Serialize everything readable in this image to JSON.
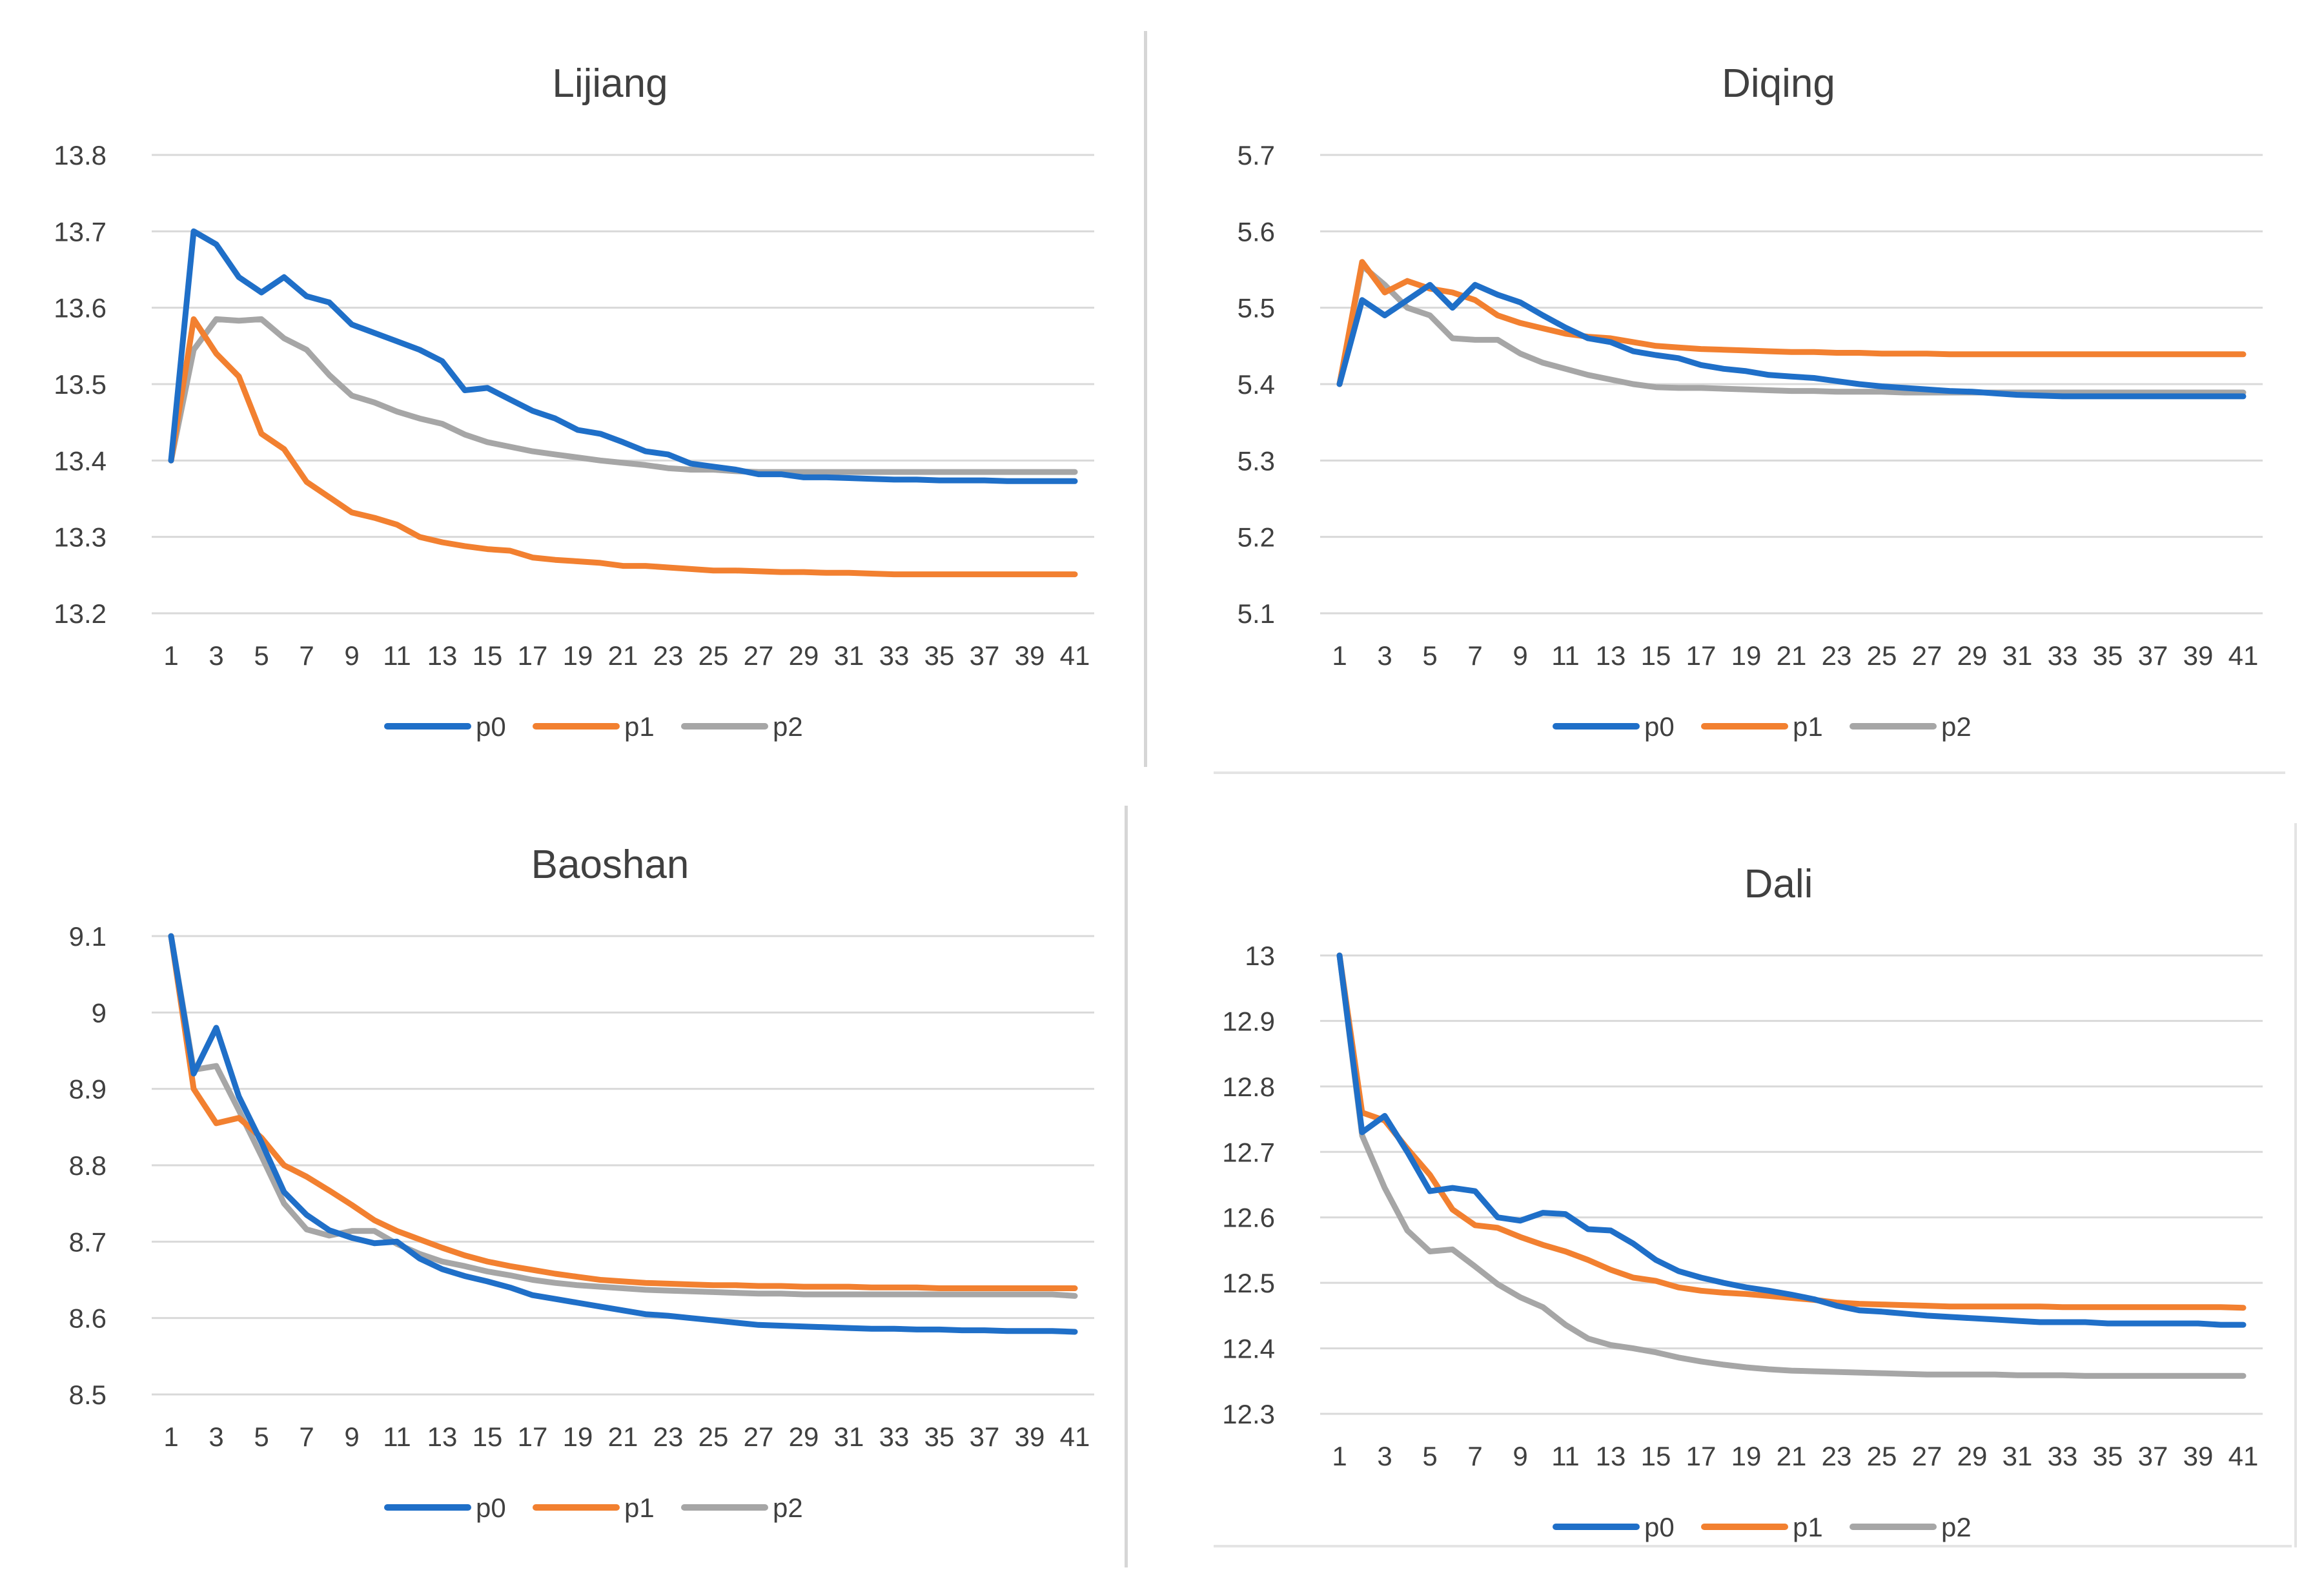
{
  "colors": {
    "p0": "#1f6fc8",
    "p1": "#f28030",
    "p2": "#a6a6a6",
    "grid": "#d9d9d9",
    "text": "#404040"
  },
  "chart_data": [
    {
      "type": "line",
      "title": "Lijiang",
      "xlabel": "",
      "ylabel": "",
      "x_tick_labels": [
        "1",
        "3",
        "5",
        "7",
        "9",
        "11",
        "13",
        "15",
        "17",
        "19",
        "21",
        "23",
        "25",
        "27",
        "29",
        "31",
        "33",
        "35",
        "37",
        "39",
        "41"
      ],
      "y_tick_labels": [
        "13.2",
        "13.3",
        "13.4",
        "13.5",
        "13.6",
        "13.7",
        "13.8"
      ],
      "ylim": [
        13.2,
        13.8
      ],
      "grid": true,
      "legend": "bottom",
      "series": [
        {
          "name": "p0",
          "values": [
            13.4,
            13.7,
            13.683,
            13.64,
            13.62,
            13.64,
            13.615,
            13.607,
            13.578,
            13.567,
            13.556,
            13.545,
            13.53,
            13.492,
            13.495,
            13.48,
            13.465,
            13.455,
            13.44,
            13.435,
            13.424,
            13.412,
            13.408,
            13.396,
            13.392,
            13.388,
            13.382,
            13.382,
            13.378,
            13.378,
            13.377,
            13.376,
            13.375,
            13.375,
            13.374,
            13.374,
            13.374,
            13.373,
            13.373,
            13.373,
            13.373
          ]
        },
        {
          "name": "p1",
          "values": [
            13.4,
            13.585,
            13.54,
            13.51,
            13.435,
            13.415,
            13.372,
            13.352,
            13.332,
            13.325,
            13.316,
            13.3,
            13.293,
            13.288,
            13.284,
            13.282,
            13.273,
            13.27,
            13.268,
            13.266,
            13.262,
            13.262,
            13.26,
            13.258,
            13.256,
            13.256,
            13.255,
            13.254,
            13.254,
            13.253,
            13.253,
            13.252,
            13.251,
            13.251,
            13.251,
            13.251,
            13.251,
            13.251,
            13.251,
            13.251,
            13.251
          ]
        },
        {
          "name": "p2",
          "values": [
            13.4,
            13.545,
            13.585,
            13.583,
            13.585,
            13.56,
            13.545,
            13.512,
            13.485,
            13.476,
            13.464,
            13.455,
            13.448,
            13.434,
            13.424,
            13.418,
            13.412,
            13.408,
            13.404,
            13.4,
            13.397,
            13.394,
            13.39,
            13.388,
            13.388,
            13.386,
            13.385,
            13.385,
            13.385,
            13.385,
            13.385,
            13.385,
            13.385,
            13.385,
            13.385,
            13.385,
            13.385,
            13.385,
            13.385,
            13.385,
            13.385
          ]
        }
      ]
    },
    {
      "type": "line",
      "title": "Diqing",
      "xlabel": "",
      "ylabel": "",
      "x_tick_labels": [
        "1",
        "3",
        "5",
        "7",
        "9",
        "11",
        "13",
        "15",
        "17",
        "19",
        "21",
        "23",
        "25",
        "27",
        "29",
        "31",
        "33",
        "35",
        "37",
        "39",
        "41"
      ],
      "y_tick_labels": [
        "5.1",
        "5.2",
        "5.3",
        "5.4",
        "5.5",
        "5.6",
        "5.7"
      ],
      "ylim": [
        5.1,
        5.7
      ],
      "grid": true,
      "legend": "bottom",
      "series": [
        {
          "name": "p0",
          "values": [
            5.4,
            5.51,
            5.49,
            5.51,
            5.53,
            5.5,
            5.53,
            5.517,
            5.507,
            5.49,
            5.474,
            5.46,
            5.455,
            5.443,
            5.438,
            5.434,
            5.425,
            5.42,
            5.417,
            5.412,
            5.41,
            5.408,
            5.404,
            5.4,
            5.397,
            5.395,
            5.393,
            5.391,
            5.39,
            5.388,
            5.386,
            5.385,
            5.384,
            5.384,
            5.384,
            5.384,
            5.384,
            5.384,
            5.384,
            5.384,
            5.384
          ]
        },
        {
          "name": "p1",
          "values": [
            5.4,
            5.56,
            5.52,
            5.535,
            5.525,
            5.52,
            5.51,
            5.49,
            5.48,
            5.473,
            5.466,
            5.462,
            5.46,
            5.455,
            5.45,
            5.448,
            5.446,
            5.445,
            5.444,
            5.443,
            5.442,
            5.442,
            5.441,
            5.441,
            5.44,
            5.44,
            5.44,
            5.439,
            5.439,
            5.439,
            5.439,
            5.439,
            5.439,
            5.439,
            5.439,
            5.439,
            5.439,
            5.439,
            5.439,
            5.439,
            5.439
          ]
        },
        {
          "name": "p2",
          "values": [
            5.4,
            5.555,
            5.53,
            5.5,
            5.49,
            5.46,
            5.458,
            5.458,
            5.44,
            5.428,
            5.42,
            5.412,
            5.406,
            5.4,
            5.396,
            5.395,
            5.395,
            5.394,
            5.393,
            5.392,
            5.391,
            5.391,
            5.39,
            5.39,
            5.39,
            5.389,
            5.389,
            5.389,
            5.389,
            5.389,
            5.389,
            5.389,
            5.389,
            5.389,
            5.389,
            5.389,
            5.389,
            5.389,
            5.389,
            5.389,
            5.389
          ]
        }
      ]
    },
    {
      "type": "line",
      "title": "Baoshan",
      "xlabel": "",
      "ylabel": "",
      "x_tick_labels": [
        "1",
        "3",
        "5",
        "7",
        "9",
        "11",
        "13",
        "15",
        "17",
        "19",
        "21",
        "23",
        "25",
        "27",
        "29",
        "31",
        "33",
        "35",
        "37",
        "39",
        "41"
      ],
      "y_tick_labels": [
        "8.5",
        "8.6",
        "8.7",
        "8.8",
        "8.9",
        "9",
        "9.1"
      ],
      "ylim": [
        8.5,
        9.1
      ],
      "grid": true,
      "legend": "bottom",
      "series": [
        {
          "name": "p0",
          "values": [
            9.1,
            8.92,
            8.98,
            8.89,
            8.83,
            8.765,
            8.735,
            8.715,
            8.705,
            8.698,
            8.7,
            8.678,
            8.664,
            8.655,
            8.648,
            8.64,
            8.63,
            8.625,
            8.62,
            8.615,
            8.61,
            8.605,
            8.603,
            8.6,
            8.597,
            8.594,
            8.591,
            8.59,
            8.589,
            8.588,
            8.587,
            8.586,
            8.586,
            8.585,
            8.585,
            8.584,
            8.584,
            8.583,
            8.583,
            8.583,
            8.582
          ]
        },
        {
          "name": "p1",
          "values": [
            9.1,
            8.9,
            8.855,
            8.862,
            8.836,
            8.8,
            8.785,
            8.767,
            8.748,
            8.728,
            8.714,
            8.703,
            8.692,
            8.682,
            8.674,
            8.668,
            8.663,
            8.658,
            8.654,
            8.65,
            8.648,
            8.646,
            8.645,
            8.644,
            8.643,
            8.643,
            8.642,
            8.642,
            8.641,
            8.641,
            8.641,
            8.64,
            8.64,
            8.64,
            8.639,
            8.639,
            8.639,
            8.639,
            8.639,
            8.639,
            8.639
          ]
        },
        {
          "name": "p2",
          "values": [
            9.1,
            8.925,
            8.93,
            8.872,
            8.812,
            8.75,
            8.716,
            8.708,
            8.714,
            8.714,
            8.697,
            8.684,
            8.674,
            8.668,
            8.661,
            8.656,
            8.65,
            8.646,
            8.643,
            8.641,
            8.639,
            8.637,
            8.636,
            8.635,
            8.634,
            8.633,
            8.632,
            8.632,
            8.631,
            8.631,
            8.631,
            8.631,
            8.631,
            8.631,
            8.631,
            8.631,
            8.631,
            8.631,
            8.631,
            8.631,
            8.629
          ]
        }
      ]
    },
    {
      "type": "line",
      "title": "Dali",
      "xlabel": "",
      "ylabel": "",
      "x_tick_labels": [
        "1",
        "3",
        "5",
        "7",
        "9",
        "11",
        "13",
        "15",
        "17",
        "19",
        "21",
        "23",
        "25",
        "27",
        "29",
        "31",
        "33",
        "35",
        "37",
        "39",
        "41"
      ],
      "y_tick_labels": [
        "12.3",
        "12.4",
        "12.5",
        "12.6",
        "12.7",
        "12.8",
        "12.9",
        "13"
      ],
      "ylim": [
        12.3,
        13.0
      ],
      "grid": true,
      "legend": "bottom",
      "series": [
        {
          "name": "p0",
          "values": [
            13.0,
            12.73,
            12.755,
            12.7,
            12.64,
            12.645,
            12.64,
            12.6,
            12.595,
            12.607,
            12.605,
            12.582,
            12.58,
            12.56,
            12.535,
            12.518,
            12.508,
            12.5,
            12.493,
            12.488,
            12.482,
            12.475,
            12.465,
            12.458,
            12.456,
            12.453,
            12.45,
            12.448,
            12.446,
            12.444,
            12.442,
            12.44,
            12.44,
            12.44,
            12.438,
            12.438,
            12.438,
            12.438,
            12.438,
            12.436,
            12.436
          ]
        },
        {
          "name": "p1",
          "values": [
            13.0,
            12.76,
            12.748,
            12.705,
            12.665,
            12.612,
            12.588,
            12.584,
            12.57,
            12.558,
            12.548,
            12.535,
            12.52,
            12.508,
            12.503,
            12.493,
            12.488,
            12.485,
            12.483,
            12.48,
            12.477,
            12.474,
            12.47,
            12.468,
            12.467,
            12.466,
            12.465,
            12.464,
            12.464,
            12.464,
            12.464,
            12.464,
            12.463,
            12.463,
            12.463,
            12.463,
            12.463,
            12.463,
            12.463,
            12.463,
            12.462
          ]
        },
        {
          "name": "p2",
          "values": [
            13.0,
            12.725,
            12.645,
            12.58,
            12.548,
            12.551,
            12.525,
            12.498,
            12.478,
            12.463,
            12.436,
            12.415,
            12.405,
            12.4,
            12.394,
            12.386,
            12.38,
            12.375,
            12.371,
            12.368,
            12.366,
            12.365,
            12.364,
            12.363,
            12.362,
            12.361,
            12.36,
            12.36,
            12.36,
            12.36,
            12.359,
            12.359,
            12.359,
            12.358,
            12.358,
            12.358,
            12.358,
            12.358,
            12.358,
            12.358,
            12.358
          ]
        }
      ]
    }
  ]
}
